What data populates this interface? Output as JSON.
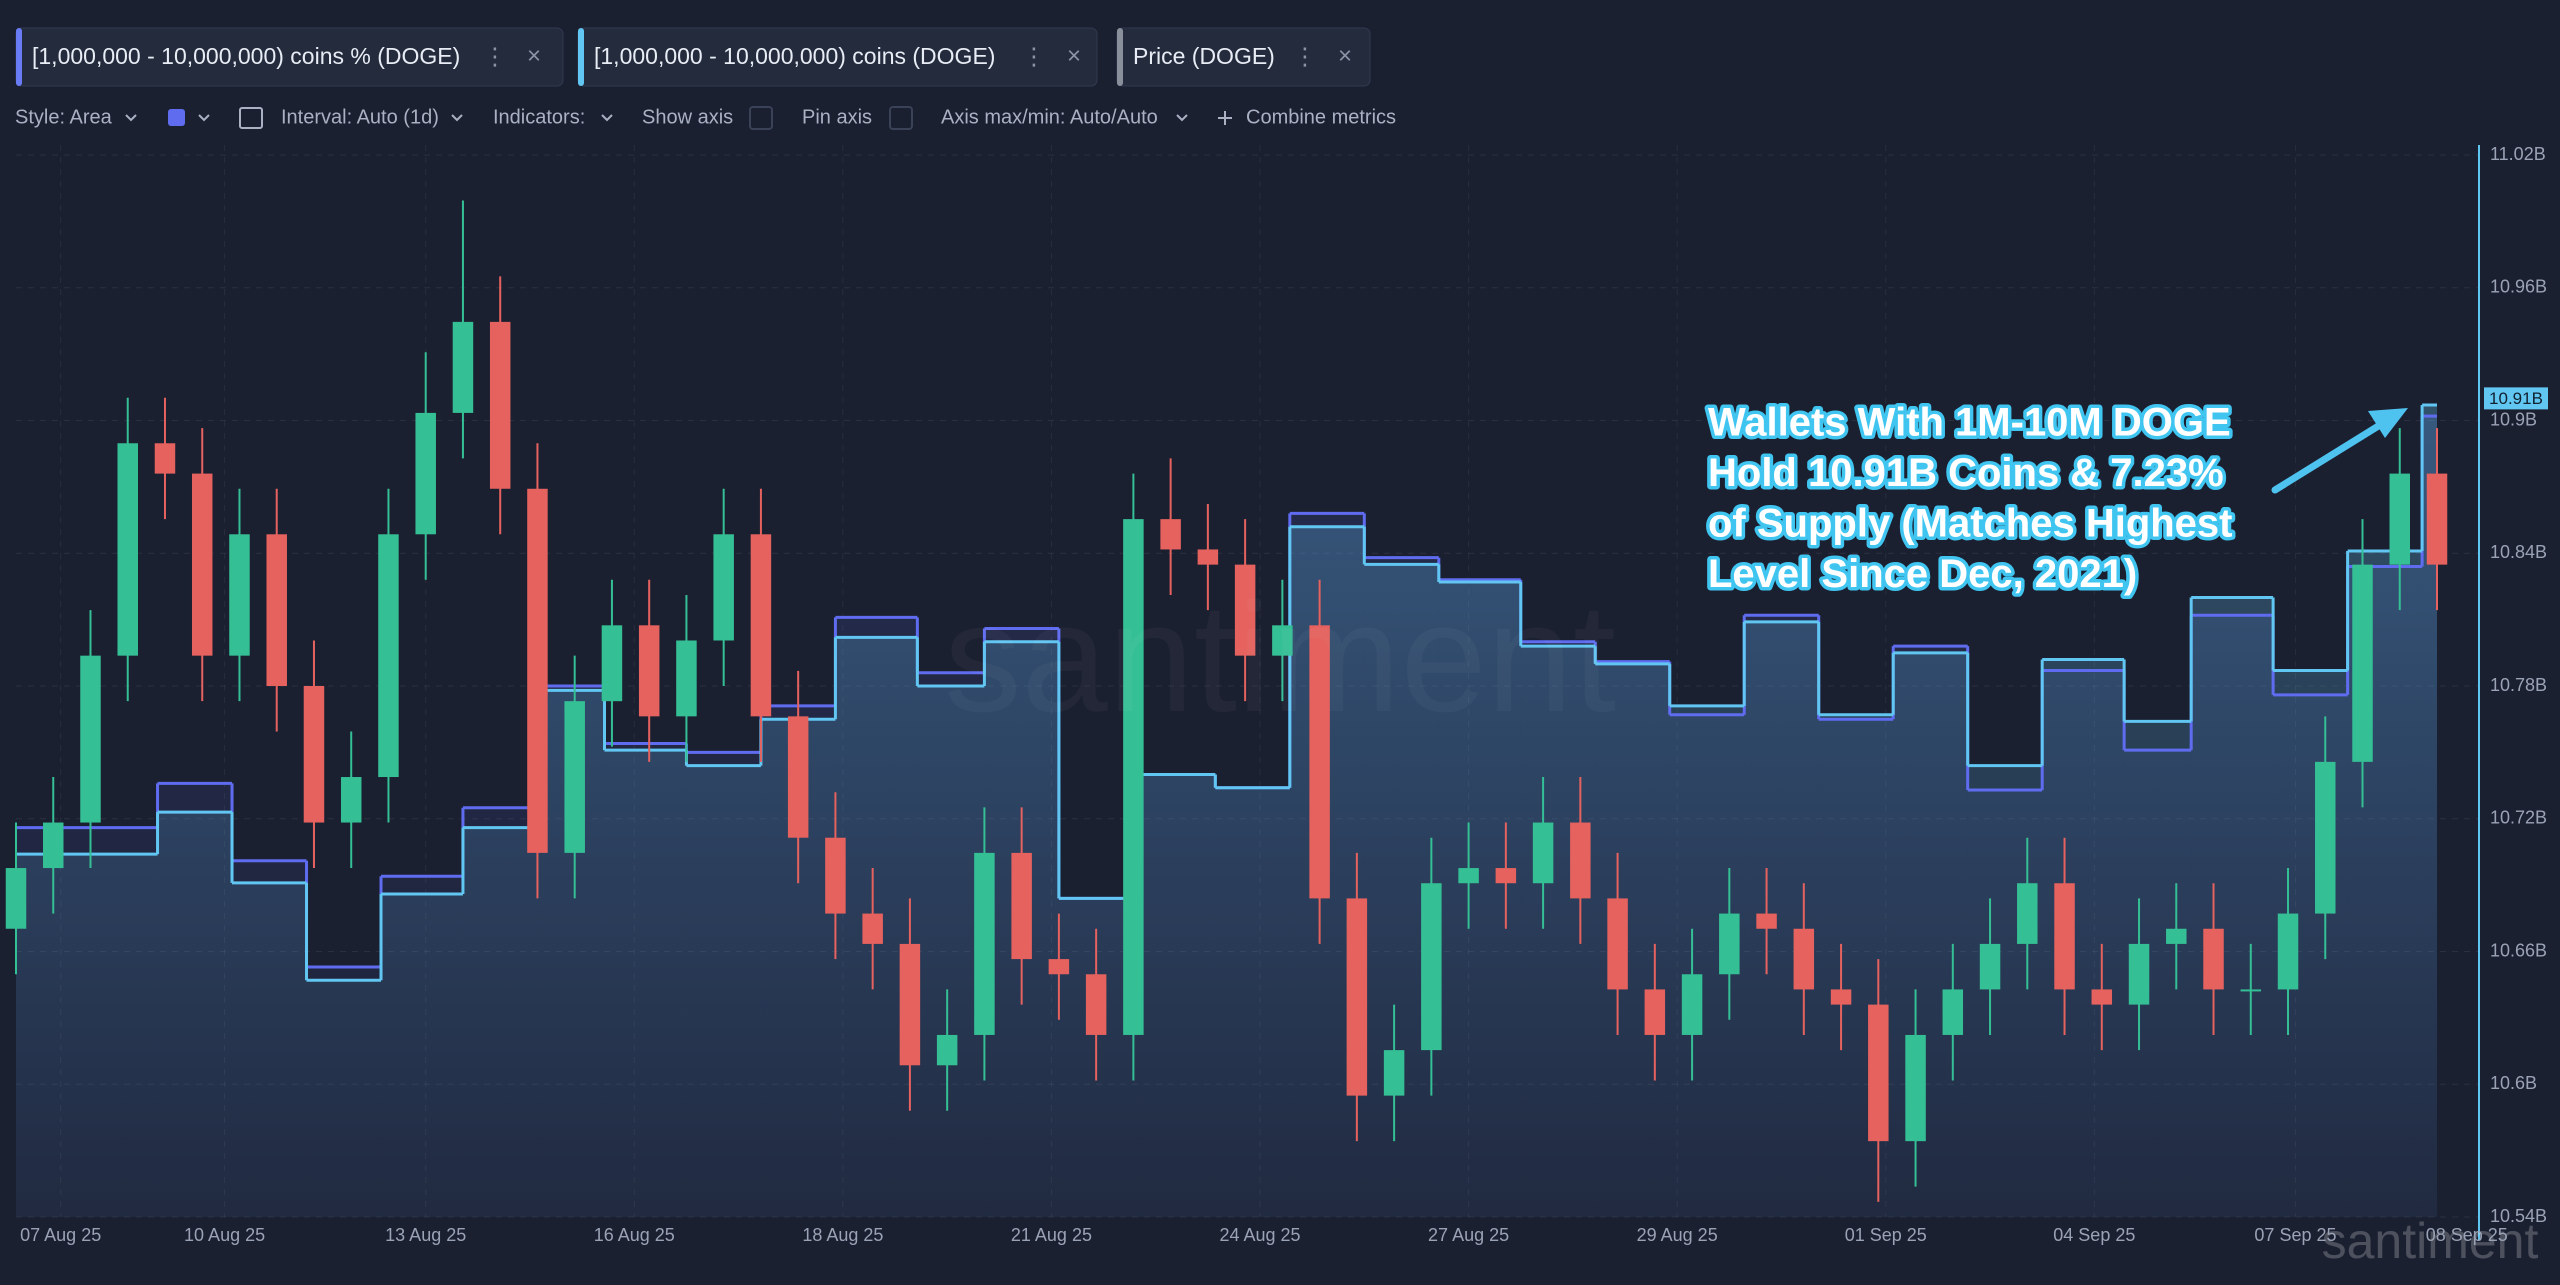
{
  "toolbar": {
    "style": "Style: Area",
    "interval": "Interval: Auto (1d)",
    "indicators": "Indicators:",
    "show_axis": "Show axis",
    "pin_axis": "Pin axis",
    "axis_range": "Axis max/min: Auto/Auto",
    "combine": "Combine metrics"
  },
  "watermark": "santiment",
  "chart_data": {
    "type": "area",
    "grid": true,
    "xlim": [
      0,
      32.5
    ],
    "xticks": [
      {
        "value": 0.6,
        "label": "07 Aug 25"
      },
      {
        "value": 2.8,
        "label": "10 Aug 25"
      },
      {
        "value": 5.5,
        "label": "13 Aug 25"
      },
      {
        "value": 8.3,
        "label": "16 Aug 25"
      },
      {
        "value": 11.1,
        "label": "18 Aug 25"
      },
      {
        "value": 13.9,
        "label": "21 Aug 25"
      },
      {
        "value": 16.7,
        "label": "24 Aug 25"
      },
      {
        "value": 19.5,
        "label": "27 Aug 25"
      },
      {
        "value": 22.3,
        "label": "29 Aug 25"
      },
      {
        "value": 25.1,
        "label": "01 Sep 25"
      },
      {
        "value": 27.9,
        "label": "04 Sep 25"
      },
      {
        "value": 30.6,
        "label": "07 Sep 25"
      },
      {
        "value": 32.9,
        "label": "08 Sep 25"
      }
    ],
    "ylim": [
      10.54,
      11.02
    ],
    "yticks": [
      {
        "value": 10.54,
        "label": "10.54B"
      },
      {
        "value": 10.6,
        "label": "10.6B"
      },
      {
        "value": 10.66,
        "label": "10.66B"
      },
      {
        "value": 10.72,
        "label": "10.72B"
      },
      {
        "value": 10.78,
        "label": "10.78B"
      },
      {
        "value": 10.84,
        "label": "10.84B"
      },
      {
        "value": 10.9,
        "label": "10.9B"
      },
      {
        "value": 10.96,
        "label": "10.96B"
      },
      {
        "value": 11.02,
        "label": "11.02B"
      }
    ],
    "y2lim": [
      0.19,
      0.26
    ],
    "last_value": {
      "value": 10.91,
      "label": "10.91B"
    },
    "annotation": [
      "Wallets With 1M-10M DOGE",
      "Hold 10.91B Coins & 7.23%",
      "of Supply (Matches Highest",
      "Level Since Dec, 2021)"
    ],
    "series": [
      {
        "name": "[1,000,000 - 10,000,000) coins % (DOGE)",
        "color": "#5f6cf0",
        "x": [
          0,
          1.9,
          2.9,
          3.9,
          4.9,
          6,
          7,
          7.9,
          9,
          10,
          11,
          12.1,
          13,
          14,
          15.1,
          16.1,
          17.1,
          18.1,
          19.1,
          20.2,
          21.2,
          22.2,
          23.2,
          24.2,
          25.2,
          26.2,
          27.2,
          28.3,
          29.2,
          30.3,
          31.3,
          32.3
        ],
        "values": [
          10.716,
          10.736,
          10.701,
          10.653,
          10.694,
          10.725,
          10.78,
          10.754,
          10.75,
          10.771,
          10.811,
          10.786,
          10.806,
          10.684,
          10.74,
          10.734,
          10.858,
          10.838,
          10.828,
          10.8,
          10.791,
          10.767,
          10.812,
          10.765,
          10.798,
          10.733,
          10.787,
          10.751,
          10.812,
          10.776,
          10.834,
          10.902
        ]
      },
      {
        "name": "[1,000,000 - 10,000,000) coins (DOGE)",
        "color": "#62c6f2",
        "x": [
          0,
          1.9,
          2.9,
          3.9,
          4.9,
          6,
          7,
          7.9,
          9,
          10,
          11,
          12.1,
          13,
          14,
          15.1,
          16.1,
          17.1,
          18.1,
          19.1,
          20.2,
          21.2,
          22.2,
          23.2,
          24.2,
          25.2,
          26.2,
          27.2,
          28.3,
          29.2,
          30.3,
          31.3,
          32.3
        ],
        "values": [
          10.704,
          10.723,
          10.691,
          10.647,
          10.686,
          10.716,
          10.778,
          10.751,
          10.744,
          10.765,
          10.802,
          10.78,
          10.8,
          10.684,
          10.74,
          10.734,
          10.852,
          10.835,
          10.827,
          10.798,
          10.79,
          10.771,
          10.809,
          10.767,
          10.795,
          10.744,
          10.792,
          10.764,
          10.82,
          10.787,
          10.841,
          10.907
        ]
      },
      {
        "name": "Price (DOGE)",
        "type": "candlestick",
        "axis": "y2",
        "color": "#8a8f9c",
        "up_color": "#35bf95",
        "down_color": "#e5625e",
        "x": [
          0,
          0.5,
          1,
          1.5,
          2,
          2.5,
          3,
          3.5,
          4,
          4.5,
          5,
          5.5,
          6,
          6.5,
          7,
          7.5,
          8,
          8.5,
          9,
          9.5,
          10,
          10.5,
          11,
          11.5,
          12,
          12.5,
          13,
          13.5,
          14,
          14.5,
          15,
          15.5,
          16,
          16.5,
          17,
          17.5,
          18,
          18.5,
          19,
          19.5,
          20,
          20.5,
          21,
          21.5,
          22,
          22.5,
          23,
          23.5,
          24,
          24.5,
          25,
          25.5,
          26,
          26.5,
          27,
          27.5,
          28,
          28.5,
          29,
          29.5,
          30,
          30.5,
          31,
          31.5,
          32,
          32.5
        ],
        "open": [
          0.209,
          0.213,
          0.216,
          0.227,
          0.241,
          0.239,
          0.227,
          0.235,
          0.225,
          0.216,
          0.219,
          0.235,
          0.243,
          0.249,
          0.238,
          0.214,
          0.224,
          0.229,
          0.223,
          0.228,
          0.235,
          0.223,
          0.215,
          0.21,
          0.208,
          0.2,
          0.202,
          0.214,
          0.207,
          0.206,
          0.202,
          0.236,
          0.234,
          0.233,
          0.227,
          0.229,
          0.211,
          0.198,
          0.201,
          0.212,
          0.213,
          0.212,
          0.216,
          0.211,
          0.205,
          0.202,
          0.206,
          0.21,
          0.209,
          0.205,
          0.204,
          0.195,
          0.202,
          0.205,
          0.208,
          0.212,
          0.205,
          0.204,
          0.208,
          0.209,
          0.205,
          0.205,
          0.21,
          0.22,
          0.233,
          0.239
        ],
        "high": [
          0.216,
          0.219,
          0.23,
          0.244,
          0.244,
          0.242,
          0.238,
          0.238,
          0.228,
          0.222,
          0.238,
          0.247,
          0.257,
          0.252,
          0.241,
          0.227,
          0.232,
          0.232,
          0.231,
          0.238,
          0.238,
          0.226,
          0.218,
          0.213,
          0.211,
          0.205,
          0.217,
          0.217,
          0.21,
          0.209,
          0.239,
          0.24,
          0.237,
          0.236,
          0.232,
          0.232,
          0.214,
          0.204,
          0.215,
          0.216,
          0.216,
          0.219,
          0.219,
          0.214,
          0.208,
          0.209,
          0.213,
          0.213,
          0.212,
          0.208,
          0.207,
          0.205,
          0.208,
          0.211,
          0.215,
          0.215,
          0.208,
          0.211,
          0.212,
          0.212,
          0.208,
          0.213,
          0.223,
          0.236,
          0.242,
          0.242
        ],
        "low": [
          0.206,
          0.21,
          0.213,
          0.224,
          0.236,
          0.224,
          0.224,
          0.222,
          0.213,
          0.213,
          0.216,
          0.232,
          0.24,
          0.235,
          0.211,
          0.211,
          0.221,
          0.22,
          0.22,
          0.225,
          0.22,
          0.212,
          0.207,
          0.205,
          0.197,
          0.197,
          0.199,
          0.204,
          0.203,
          0.199,
          0.199,
          0.231,
          0.23,
          0.224,
          0.224,
          0.208,
          0.195,
          0.195,
          0.198,
          0.209,
          0.209,
          0.209,
          0.208,
          0.202,
          0.199,
          0.199,
          0.203,
          0.206,
          0.202,
          0.201,
          0.191,
          0.192,
          0.199,
          0.202,
          0.205,
          0.202,
          0.201,
          0.201,
          0.205,
          0.202,
          0.202,
          0.202,
          0.207,
          0.217,
          0.23,
          0.23
        ],
        "close": [
          0.213,
          0.216,
          0.227,
          0.241,
          0.239,
          0.227,
          0.235,
          0.225,
          0.216,
          0.219,
          0.235,
          0.243,
          0.249,
          0.238,
          0.214,
          0.224,
          0.229,
          0.223,
          0.228,
          0.235,
          0.223,
          0.215,
          0.21,
          0.208,
          0.2,
          0.202,
          0.214,
          0.207,
          0.206,
          0.202,
          0.236,
          0.234,
          0.233,
          0.227,
          0.229,
          0.211,
          0.198,
          0.201,
          0.212,
          0.213,
          0.212,
          0.216,
          0.211,
          0.205,
          0.202,
          0.206,
          0.21,
          0.209,
          0.205,
          0.204,
          0.195,
          0.202,
          0.205,
          0.208,
          0.212,
          0.205,
          0.204,
          0.208,
          0.209,
          0.205,
          0.205,
          0.21,
          0.22,
          0.233,
          0.239,
          0.233
        ]
      }
    ]
  }
}
